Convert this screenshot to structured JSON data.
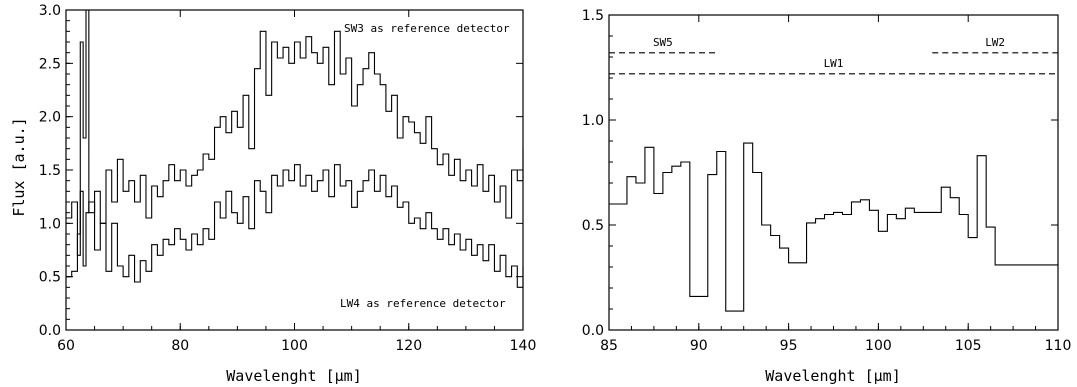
{
  "chart_data": [
    {
      "type": "line",
      "step": true,
      "title": "",
      "xlabel": "Wavelenght [μm]",
      "ylabel": "Flux [a.u.]",
      "xlim": [
        60,
        140
      ],
      "ylim": [
        0,
        3.0
      ],
      "xticks": [
        "60",
        "80",
        "100",
        "120",
        "140"
      ],
      "yticks": [
        "0.0",
        "0.5",
        "1.0",
        "1.5",
        "2.0",
        "2.5",
        "3.0"
      ],
      "annotations": [
        "SW3 as reference detector",
        "LW4 as reference detector"
      ],
      "series": [
        {
          "x": [
            60.0,
            61.0,
            62.0,
            62.5,
            63.0,
            63.5,
            64.0,
            65.0,
            66.0,
            67.0,
            68.0,
            69.0,
            70.0,
            71.0,
            72.0,
            73.0,
            74.0,
            75.0,
            76.0,
            77.0,
            78.0,
            79.0,
            80.0,
            81.0,
            82.0,
            83.0,
            84.0,
            85.0,
            86.0,
            87.0,
            88.0,
            89.0,
            90.0,
            91.0,
            92.0,
            93.0,
            94.0,
            95.0,
            96.0,
            97.0,
            98.0,
            99.0,
            100.0,
            101.0,
            102.0,
            103.0,
            104.0,
            105.0,
            106.0,
            107.0,
            108.0,
            109.0,
            110.0,
            111.0,
            112.0,
            113.0,
            114.0,
            115.0,
            116.0,
            117.0,
            118.0,
            119.0,
            120.0,
            121.0,
            122.0,
            123.0,
            124.0,
            125.0,
            126.0,
            127.0,
            128.0,
            129.0,
            130.0,
            131.0,
            132.0,
            133.0,
            134.0,
            135.0,
            136.0,
            137.0,
            138.0,
            139.0,
            140.0
          ],
          "y": [
            1.05,
            1.2,
            0.7,
            2.7,
            1.8,
            3.0,
            1.1,
            1.3,
            1.0,
            1.5,
            1.2,
            1.6,
            1.3,
            1.4,
            1.2,
            1.45,
            1.05,
            1.35,
            1.25,
            1.4,
            1.55,
            1.4,
            1.5,
            1.35,
            1.45,
            1.5,
            1.65,
            1.6,
            1.9,
            2.0,
            1.85,
            2.05,
            1.9,
            2.2,
            1.7,
            2.45,
            2.8,
            2.2,
            2.7,
            2.55,
            2.65,
            2.5,
            2.7,
            2.55,
            2.75,
            2.6,
            2.5,
            2.65,
            2.3,
            2.8,
            2.4,
            2.55,
            2.1,
            2.3,
            2.45,
            2.6,
            2.4,
            2.3,
            2.05,
            2.2,
            1.8,
            2.0,
            1.95,
            1.85,
            1.75,
            2.0,
            1.7,
            1.55,
            1.65,
            1.45,
            1.6,
            1.4,
            1.5,
            1.35,
            1.55,
            1.3,
            1.45,
            1.2,
            1.35,
            1.05,
            1.5,
            1.4,
            1.7
          ]
        },
        {
          "x": [
            60.0,
            61.0,
            62.0,
            62.5,
            63.0,
            63.5,
            64.0,
            65.0,
            66.0,
            67.0,
            68.0,
            69.0,
            70.0,
            71.0,
            72.0,
            73.0,
            74.0,
            75.0,
            76.0,
            77.0,
            78.0,
            79.0,
            80.0,
            81.0,
            82.0,
            83.0,
            84.0,
            85.0,
            86.0,
            87.0,
            88.0,
            89.0,
            90.0,
            91.0,
            92.0,
            93.0,
            94.0,
            95.0,
            96.0,
            97.0,
            98.0,
            99.0,
            100.0,
            101.0,
            102.0,
            103.0,
            104.0,
            105.0,
            106.0,
            107.0,
            108.0,
            109.0,
            110.0,
            111.0,
            112.0,
            113.0,
            114.0,
            115.0,
            116.0,
            117.0,
            118.0,
            119.0,
            120.0,
            121.0,
            122.0,
            123.0,
            124.0,
            125.0,
            126.0,
            127.0,
            128.0,
            129.0,
            130.0,
            131.0,
            132.0,
            133.0,
            134.0,
            135.0,
            136.0,
            137.0,
            138.0,
            139.0,
            140.0
          ],
          "y": [
            0.5,
            0.55,
            0.9,
            1.3,
            0.6,
            1.1,
            1.2,
            0.75,
            1.0,
            0.55,
            1.0,
            0.6,
            0.5,
            0.7,
            0.45,
            0.65,
            0.55,
            0.8,
            0.7,
            0.85,
            0.8,
            0.95,
            0.85,
            0.75,
            0.9,
            0.8,
            0.95,
            0.85,
            1.2,
            1.05,
            1.3,
            1.1,
            1.0,
            1.25,
            0.95,
            1.4,
            1.3,
            1.1,
            1.45,
            1.35,
            1.5,
            1.4,
            1.55,
            1.35,
            1.45,
            1.3,
            1.4,
            1.5,
            1.25,
            1.55,
            1.35,
            1.4,
            1.15,
            1.3,
            1.4,
            1.5,
            1.3,
            1.45,
            1.25,
            1.35,
            1.15,
            1.2,
            1.0,
            1.05,
            0.95,
            1.1,
            0.95,
            0.85,
            0.95,
            0.8,
            0.9,
            0.75,
            0.85,
            0.7,
            0.8,
            0.65,
            0.8,
            0.55,
            0.7,
            0.5,
            0.6,
            0.4,
            0.6
          ]
        }
      ]
    },
    {
      "type": "line",
      "step": true,
      "title": "",
      "xlabel": "Wavelenght [μm]",
      "ylabel": "",
      "xlim": [
        85,
        110
      ],
      "ylim": [
        0,
        1.5
      ],
      "xticks": [
        "85",
        "90",
        "95",
        "100",
        "105",
        "110"
      ],
      "yticks": [
        "0.0",
        "0.5",
        "1.0",
        "1.5"
      ],
      "bands": [
        {
          "label": "SW5",
          "x": [
            85,
            91
          ],
          "y": 1.32
        },
        {
          "label": "LW1",
          "x": [
            85,
            110
          ],
          "y": 1.22
        },
        {
          "label": "LW2",
          "x": [
            103,
            110
          ],
          "y": 1.32
        }
      ],
      "series": [
        {
          "x": [
            85.0,
            85.5,
            86.0,
            86.5,
            87.0,
            87.5,
            88.0,
            88.5,
            89.0,
            89.5,
            90.0,
            90.5,
            91.0,
            91.5,
            92.0,
            92.5,
            93.0,
            93.5,
            94.0,
            94.5,
            95.0,
            95.5,
            96.0,
            96.5,
            97.0,
            97.5,
            98.0,
            98.5,
            99.0,
            99.5,
            100.0,
            100.5,
            101.0,
            101.5,
            102.0,
            102.5,
            103.0,
            103.5,
            104.0,
            104.5,
            105.0,
            105.5,
            106.0,
            106.5,
            107.0,
            107.5,
            108.0,
            108.5,
            109.0,
            109.5,
            110.0
          ],
          "y": [
            0.6,
            0.6,
            0.73,
            0.7,
            0.87,
            0.65,
            0.75,
            0.78,
            0.8,
            0.16,
            0.16,
            0.74,
            0.85,
            0.09,
            0.09,
            0.89,
            0.75,
            0.5,
            0.45,
            0.39,
            0.32,
            0.32,
            0.51,
            0.53,
            0.55,
            0.56,
            0.55,
            0.61,
            0.62,
            0.57,
            0.47,
            0.55,
            0.53,
            0.58,
            0.56,
            0.56,
            0.56,
            0.68,
            0.63,
            0.55,
            0.44,
            0.83,
            0.49,
            0.31,
            0.31,
            0.31,
            0.31,
            0.31,
            0.31,
            0.31,
            0.31
          ]
        }
      ]
    }
  ]
}
